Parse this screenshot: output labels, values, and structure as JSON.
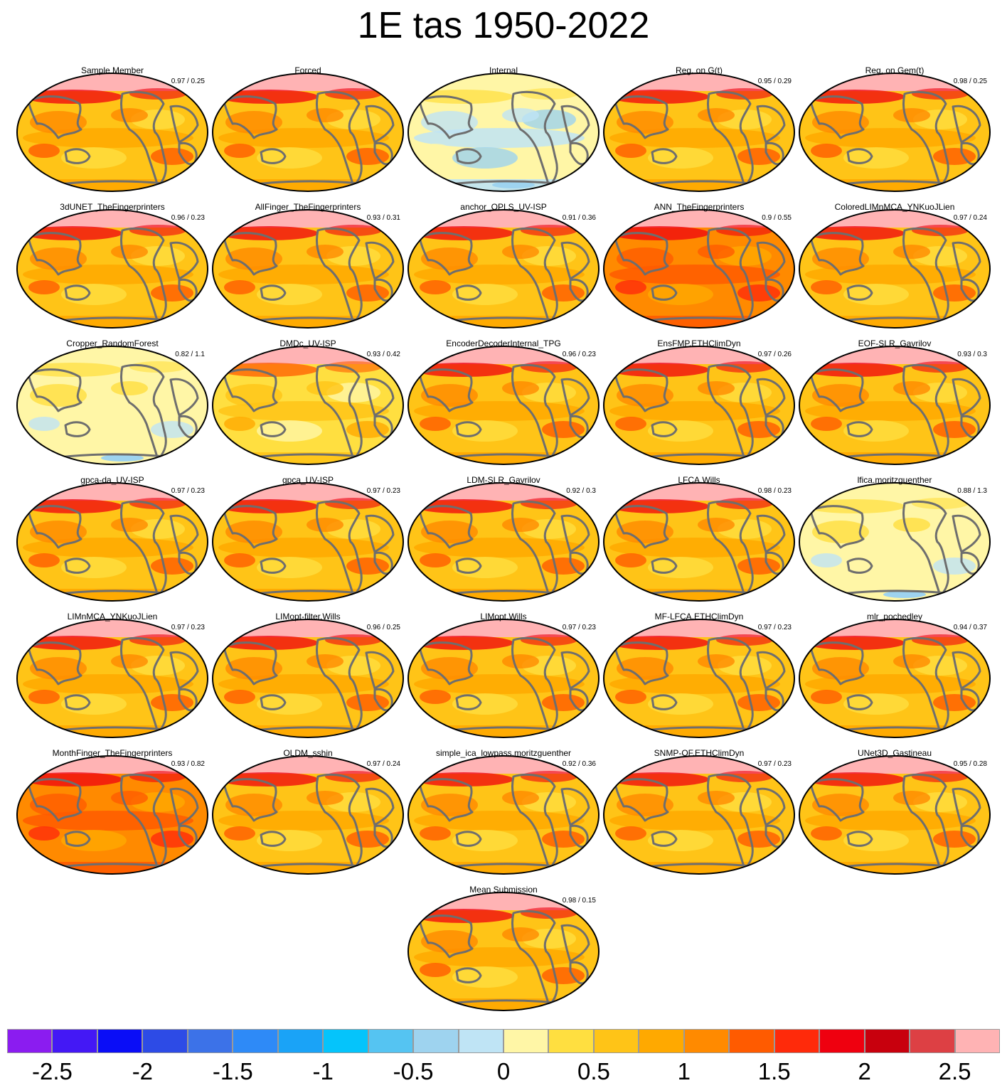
{
  "title": "1E tas 1950-2022",
  "panels": [
    {
      "name": "Sample Member",
      "score": "0.97 / 0.25",
      "style": "warm"
    },
    {
      "name": "Forced",
      "score": "",
      "style": "warm"
    },
    {
      "name": "Internal",
      "score": "",
      "style": "neutral"
    },
    {
      "name": "Reg. on G(t)",
      "score": "0.95 / 0.29",
      "style": "warm"
    },
    {
      "name": "Reg. on Gem(t)",
      "score": "0.98 / 0.25",
      "style": "warm"
    },
    {
      "name": "3dUNET_TheFingerprinters",
      "score": "0.96 / 0.23",
      "style": "warm"
    },
    {
      "name": "AllFinger_TheFingerprinters",
      "score": "0.93 / 0.31",
      "style": "warm"
    },
    {
      "name": "anchor_OPLS_UV-ISP",
      "score": "0.91 / 0.36",
      "style": "warm"
    },
    {
      "name": "ANN_TheFingerprinters",
      "score": "0.9 / 0.55",
      "style": "hot"
    },
    {
      "name": "ColoredLIMnMCA_YNKuoJLien",
      "score": "0.97 / 0.24",
      "style": "warm"
    },
    {
      "name": "Cropper_RandomForest",
      "score": "0.82 / 1.1",
      "style": "pale"
    },
    {
      "name": "DMDc_UV-ISP",
      "score": "0.93 / 0.42",
      "style": "mild"
    },
    {
      "name": "EncoderDecoderInternal_TPG",
      "score": "0.96 / 0.23",
      "style": "warm"
    },
    {
      "name": "EnsFMP.ETHClimDyn",
      "score": "0.97 / 0.26",
      "style": "warm"
    },
    {
      "name": "EOF-SLR_Gavrilov",
      "score": "0.93 / 0.3",
      "style": "warm"
    },
    {
      "name": "gpca-da_UV-ISP",
      "score": "0.97 / 0.23",
      "style": "warm"
    },
    {
      "name": "gpca_UV-ISP",
      "score": "0.97 / 0.23",
      "style": "warm"
    },
    {
      "name": "LDM-SLR_Gavrilov",
      "score": "0.92 / 0.3",
      "style": "warm"
    },
    {
      "name": "LFCA.Wills",
      "score": "0.98 / 0.23",
      "style": "warm"
    },
    {
      "name": "lfica.moritzguenther",
      "score": "0.88 / 1.3",
      "style": "pale"
    },
    {
      "name": "LIMnMCA_YNKuoJLien",
      "score": "0.97 / 0.23",
      "style": "warm"
    },
    {
      "name": "LIMopt-filter.Wills",
      "score": "0.96 / 0.25",
      "style": "warm"
    },
    {
      "name": "LIMopt.Wills",
      "score": "0.97 / 0.23",
      "style": "warm"
    },
    {
      "name": "MF-LFCA.ETHClimDyn",
      "score": "0.97 / 0.23",
      "style": "warm"
    },
    {
      "name": "mlr_pochedley",
      "score": "0.94 / 0.37",
      "style": "warm"
    },
    {
      "name": "MonthFinger_TheFingerprinters",
      "score": "0.93 / 0.82",
      "style": "hot"
    },
    {
      "name": "OLDM_sshin",
      "score": "0.97 / 0.24",
      "style": "warm"
    },
    {
      "name": "simple_ica_lowpass.moritzguenther",
      "score": "0.92 / 0.36",
      "style": "warm"
    },
    {
      "name": "SNMP-OF.ETHClimDyn",
      "score": "0.97 / 0.23",
      "style": "warm"
    },
    {
      "name": "UNet3D_Gastineau",
      "score": "0.95 / 0.28",
      "style": "warm"
    },
    {
      "name": "Mean Submission",
      "score": "0.98 / 0.15",
      "style": "warm"
    }
  ],
  "colorbar": {
    "colors": [
      "#8b1cf0",
      "#4418f5",
      "#0a0df7",
      "#2d4be6",
      "#3c72e8",
      "#2e8af7",
      "#1aa3f7",
      "#05c4fb",
      "#55c4f2",
      "#9ed3ef",
      "#bfe4f5",
      "#fff6a6",
      "#ffdf40",
      "#ffc417",
      "#ffa900",
      "#ff8a00",
      "#ff5b00",
      "#ff2a0a",
      "#ef000f",
      "#c8000d",
      "#dd4044",
      "#ffb3b4"
    ],
    "tick_labels": [
      "-2.5",
      "-2",
      "-1.5",
      "-1",
      "-0.5",
      "0",
      "0.5",
      "1",
      "1.5",
      "2",
      "2.5"
    ],
    "tick_values": [
      -2.5,
      -2,
      -1.5,
      -1,
      -0.5,
      0,
      0.5,
      1,
      1.5,
      2,
      2.5
    ],
    "range": [
      -2.75,
      2.75
    ]
  }
}
